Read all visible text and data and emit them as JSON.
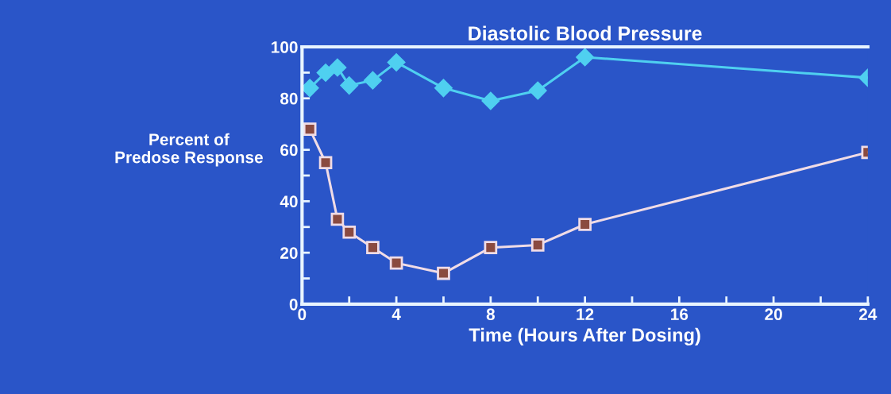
{
  "chart_data": {
    "type": "line",
    "title": "Diastolic Blood Pressure",
    "xlabel": "Time (Hours After Dosing)",
    "ylabel": "Percent of\nPredose Response",
    "xlim": [
      0,
      24
    ],
    "ylim": [
      0,
      100
    ],
    "xticks": [
      0,
      {
        "value": 2,
        "label": null
      },
      4,
      {
        "value": 6,
        "label": null
      },
      8,
      {
        "value": 10,
        "label": null
      },
      12,
      {
        "value": 14,
        "label": null
      },
      16,
      {
        "value": 18,
        "label": null
      },
      20,
      {
        "value": 22,
        "label": null
      },
      24
    ],
    "yticks": [
      0,
      {
        "value": 10,
        "label": null
      },
      20,
      {
        "value": 30,
        "label": null
      },
      40,
      {
        "value": 50,
        "label": null
      },
      60,
      {
        "value": 70,
        "label": null
      },
      80,
      {
        "value": 90,
        "label": null
      },
      100
    ],
    "grid": false,
    "line_style": "solid",
    "series": [
      {
        "color": "#4fd0f0",
        "marker": "diamond",
        "x": [
          0.33,
          1,
          1.5,
          2,
          3,
          4,
          6,
          8,
          10,
          12,
          24
        ],
        "values": [
          84,
          90,
          92,
          85,
          87,
          94,
          84,
          79,
          83,
          96,
          88
        ]
      },
      {
        "color": "#f0dce6",
        "marker": "square",
        "x": [
          0.33,
          1,
          1.5,
          2,
          3,
          4,
          6,
          8,
          10,
          12,
          24
        ],
        "values": [
          68,
          55,
          33,
          28,
          22,
          16,
          12,
          22,
          23,
          31,
          59
        ]
      }
    ]
  }
}
